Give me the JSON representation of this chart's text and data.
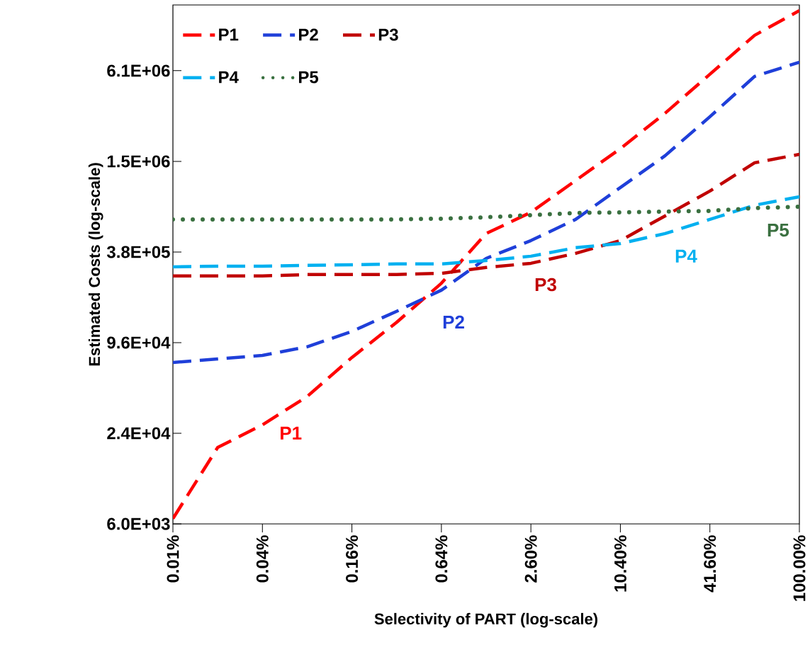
{
  "chart_data": {
    "type": "line",
    "xlabel": "Selectivity of PART (log-scale)",
    "ylabel": "Estimated Costs (log-scale)",
    "categories": [
      "0.01%",
      null,
      "0.04%",
      null,
      "0.16%",
      null,
      "0.64%",
      null,
      "2.60%",
      null,
      "10.40%",
      null,
      "41.60%",
      null,
      "100.00%"
    ],
    "series": [
      {
        "name": "P1",
        "color": "#ff0000",
        "line_style": "dashed",
        "values": [
          6500,
          19300,
          27300,
          42100,
          76500,
          131000,
          238000,
          509000,
          704000,
          1146000,
          1866000,
          3210000,
          5820000,
          10560000,
          15400000
        ]
      },
      {
        "name": "P2",
        "color": "#1f3fd9",
        "line_style": "dashed",
        "values": [
          70800,
          74800,
          79000,
          90000,
          114000,
          155000,
          214000,
          348000,
          457000,
          632000,
          1029000,
          1675000,
          3040000,
          5630000,
          7000000
        ]
      },
      {
        "name": "P3",
        "color": "#c00000",
        "line_style": "dashed",
        "values": [
          266000,
          266000,
          266000,
          272000,
          272000,
          272000,
          277000,
          303000,
          323000,
          376000,
          457000,
          667000,
          975000,
          1503000,
          1710000
        ]
      },
      {
        "name": "P4",
        "color": "#00b0f0",
        "line_style": "dashed",
        "values": [
          306000,
          309000,
          309000,
          313000,
          316000,
          320000,
          320000,
          337000,
          360000,
          410000,
          437000,
          509000,
          632000,
          785000,
          894000
        ]
      },
      {
        "name": "P5",
        "color": "#3a7040",
        "line_style": "dotted",
        "values": [
          632000,
          632000,
          632000,
          632000,
          632000,
          632000,
          639000,
          653000,
          675000,
          697000,
          704000,
          712000,
          720000,
          751000,
          768000
        ]
      }
    ],
    "log": "y",
    "ylim": [
      6000,
      16800000
    ],
    "yticks": [
      {
        "value": 6000,
        "label": "6.0E+03"
      },
      {
        "value": 24000,
        "label": "2.4E+04"
      },
      {
        "value": 96000,
        "label": "9.6E+04"
      },
      {
        "value": 384000,
        "label": "3.8E+05"
      },
      {
        "value": 1536000,
        "label": "1.5E+06"
      },
      {
        "value": 6144000,
        "label": "6.1E+06"
      }
    ],
    "legend": "top left",
    "marker": "none",
    "grid": false,
    "annotations": [
      "P1",
      "P2",
      "P3",
      "P4",
      "P5"
    ]
  }
}
